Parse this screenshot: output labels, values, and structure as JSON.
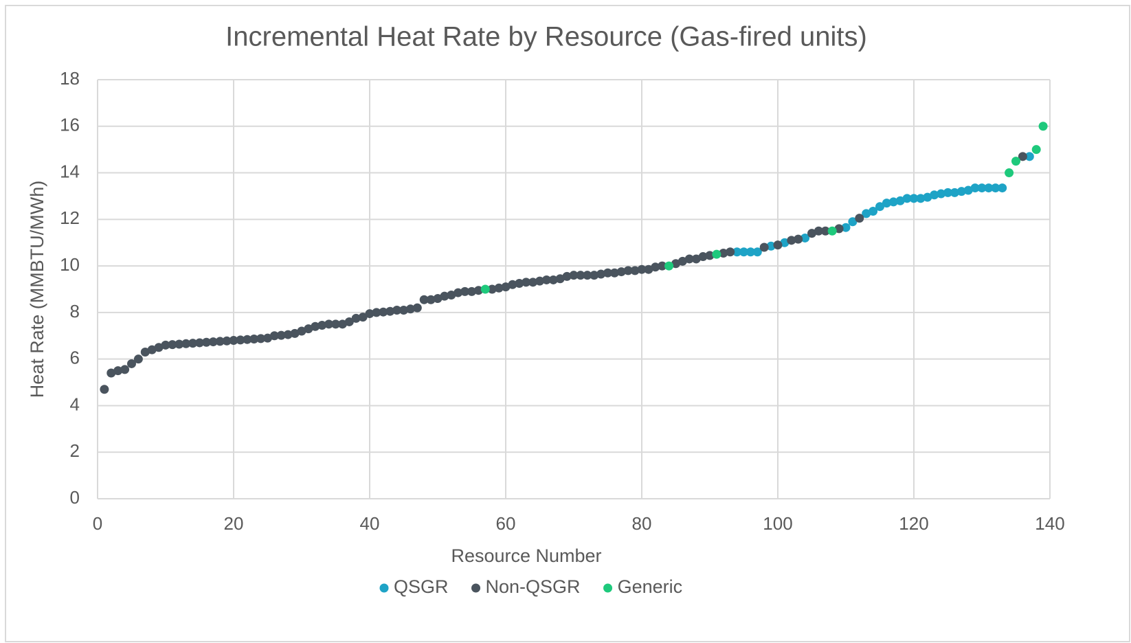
{
  "chart_data": {
    "type": "scatter",
    "title": "Incremental Heat Rate by Resource (Gas-fired units)",
    "x_label": "Resource Number",
    "y_label": "Heat Rate (MMBTU/MWh)",
    "xlim": [
      0,
      140
    ],
    "xticks": [
      0,
      20,
      40,
      60,
      80,
      100,
      120,
      140
    ],
    "ylim": [
      0,
      18
    ],
    "yticks": [
      0,
      2,
      4,
      6,
      8,
      10,
      12,
      14,
      16,
      18
    ],
    "grid": true,
    "legend": "bottom",
    "series": [
      {
        "name": "QSGR",
        "color": "#1ea3c6",
        "x": [
          94,
          95,
          96,
          97,
          99,
          101,
          104,
          110,
          111,
          113,
          114,
          115,
          116,
          117,
          118,
          119,
          120,
          121,
          122,
          123,
          124,
          125,
          126,
          127,
          128,
          129,
          130,
          131,
          132,
          133,
          137
        ],
        "values": [
          10.6,
          10.6,
          10.6,
          10.6,
          10.85,
          11.0,
          11.2,
          11.65,
          11.9,
          12.25,
          12.35,
          12.55,
          12.7,
          12.75,
          12.8,
          12.9,
          12.9,
          12.9,
          12.95,
          13.05,
          13.1,
          13.15,
          13.15,
          13.2,
          13.25,
          13.35,
          13.35,
          13.35,
          13.35,
          13.35,
          14.7
        ]
      },
      {
        "name": "Non-QSGR",
        "color": "#4a545e",
        "x": [
          1,
          2,
          3,
          4,
          5,
          6,
          7,
          8,
          9,
          10,
          11,
          12,
          13,
          14,
          15,
          16,
          17,
          18,
          19,
          20,
          21,
          22,
          23,
          24,
          25,
          26,
          27,
          28,
          29,
          30,
          31,
          32,
          33,
          34,
          35,
          36,
          37,
          38,
          39,
          40,
          41,
          42,
          43,
          44,
          45,
          46,
          47,
          48,
          49,
          50,
          51,
          52,
          53,
          54,
          55,
          56,
          58,
          59,
          60,
          61,
          62,
          63,
          64,
          65,
          66,
          67,
          68,
          69,
          70,
          71,
          72,
          73,
          74,
          75,
          76,
          77,
          78,
          79,
          80,
          81,
          82,
          83,
          85,
          86,
          87,
          88,
          89,
          90,
          92,
          93,
          98,
          100,
          102,
          103,
          105,
          106,
          107,
          109,
          112,
          136
        ],
        "values": [
          4.7,
          5.4,
          5.5,
          5.55,
          5.8,
          6.0,
          6.3,
          6.4,
          6.5,
          6.6,
          6.62,
          6.64,
          6.66,
          6.68,
          6.7,
          6.72,
          6.74,
          6.76,
          6.78,
          6.8,
          6.82,
          6.84,
          6.86,
          6.88,
          6.9,
          7.0,
          7.02,
          7.05,
          7.1,
          7.2,
          7.3,
          7.4,
          7.45,
          7.5,
          7.5,
          7.5,
          7.6,
          7.75,
          7.8,
          7.95,
          8.0,
          8.02,
          8.05,
          8.1,
          8.1,
          8.15,
          8.2,
          8.55,
          8.55,
          8.6,
          8.7,
          8.75,
          8.85,
          8.9,
          8.9,
          8.95,
          9.0,
          9.05,
          9.1,
          9.2,
          9.25,
          9.3,
          9.3,
          9.35,
          9.4,
          9.4,
          9.45,
          9.55,
          9.6,
          9.6,
          9.6,
          9.6,
          9.65,
          9.7,
          9.7,
          9.75,
          9.8,
          9.8,
          9.85,
          9.85,
          9.95,
          10.0,
          10.1,
          10.2,
          10.3,
          10.3,
          10.4,
          10.45,
          10.55,
          10.6,
          10.8,
          10.9,
          11.1,
          11.15,
          11.4,
          11.5,
          11.5,
          11.6,
          12.05,
          14.7
        ]
      },
      {
        "name": "Generic",
        "color": "#1ec97c",
        "x": [
          57,
          84,
          91,
          108,
          134,
          135,
          138,
          139
        ],
        "values": [
          9.0,
          10.0,
          10.5,
          11.5,
          14.0,
          14.5,
          15.0,
          16.0
        ]
      }
    ]
  }
}
